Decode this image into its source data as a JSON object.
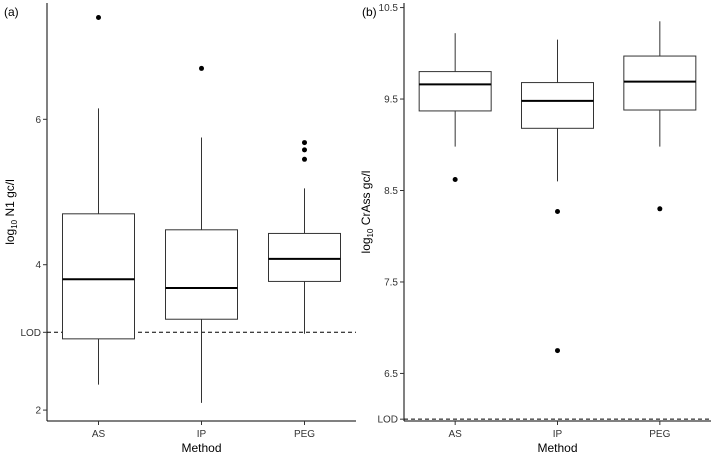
{
  "chart_data": [
    {
      "type": "boxplot",
      "panel_label": "(a)",
      "xlabel": "Method",
      "ylabel_main": "log",
      "ylabel_sub": "10",
      "ylabel_rest": " N1 gc/l",
      "categories": [
        "AS",
        "IP",
        "PEG"
      ],
      "ylim": [
        1.85,
        7.6
      ],
      "yticks": [
        2,
        4,
        6
      ],
      "ytick_labels": [
        "2",
        "4",
        "6"
      ],
      "lod": {
        "value": 3.07,
        "label": "LOD"
      },
      "boxes": [
        {
          "category": "AS",
          "whisker_low": 2.35,
          "q1": 2.98,
          "median": 3.8,
          "q3": 4.7,
          "whisker_high": 6.15,
          "outliers": [
            7.4
          ]
        },
        {
          "category": "IP",
          "whisker_low": 2.1,
          "q1": 3.25,
          "median": 3.68,
          "q3": 4.48,
          "whisker_high": 5.75,
          "outliers": [
            6.7
          ]
        },
        {
          "category": "PEG",
          "whisker_low": 3.05,
          "q1": 3.77,
          "median": 4.08,
          "q3": 4.43,
          "whisker_high": 5.05,
          "outliers": [
            5.45,
            5.58,
            5.68
          ]
        }
      ]
    },
    {
      "type": "boxplot",
      "panel_label": "(b)",
      "xlabel": "Method",
      "ylabel_main": "log",
      "ylabel_sub": "10",
      "ylabel_rest": " CrAss gc/l",
      "categories": [
        "AS",
        "IP",
        "PEG"
      ],
      "ylim": [
        5.98,
        10.55
      ],
      "yticks": [
        6.5,
        7.5,
        8.5,
        9.5,
        10.5
      ],
      "ytick_labels": [
        "6.5",
        "7.5",
        "8.5",
        "9.5",
        "10.5"
      ],
      "lod": {
        "value": 6.0,
        "label": "LOD"
      },
      "boxes": [
        {
          "category": "AS",
          "whisker_low": 8.98,
          "q1": 9.37,
          "median": 9.66,
          "q3": 9.8,
          "whisker_high": 10.22,
          "outliers": [
            8.62
          ]
        },
        {
          "category": "IP",
          "whisker_low": 8.6,
          "q1": 9.18,
          "median": 9.48,
          "q3": 9.68,
          "whisker_high": 10.15,
          "outliers": [
            8.27,
            6.75
          ]
        },
        {
          "category": "PEG",
          "whisker_low": 8.98,
          "q1": 9.38,
          "median": 9.69,
          "q3": 9.97,
          "whisker_high": 10.35,
          "outliers": [
            8.3
          ]
        }
      ]
    }
  ]
}
